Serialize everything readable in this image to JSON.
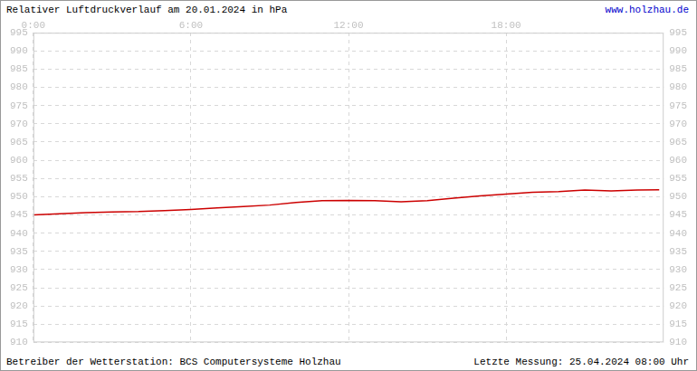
{
  "chart_data": {
    "type": "line",
    "title": "Relativer Luftdruckverlauf am 20.01.2024 in hPa",
    "annotations": [
      "www.holzhau.de",
      "Betreiber der Wetterstation: BCS Computersysteme Holzhau",
      "Letzte Messung: 25.04.2024 08:00 Uhr"
    ],
    "x": [
      0,
      1,
      2,
      3,
      4,
      5,
      6,
      7,
      8,
      9,
      10,
      11,
      12,
      13,
      14,
      15,
      16,
      17,
      18,
      19,
      20,
      21,
      22,
      23,
      23.83
    ],
    "values": [
      945.0,
      945.3,
      945.6,
      945.8,
      945.9,
      946.2,
      946.5,
      946.9,
      947.3,
      947.7,
      948.4,
      948.9,
      949.0,
      948.9,
      948.6,
      948.9,
      949.6,
      950.2,
      950.7,
      951.2,
      951.4,
      951.8,
      951.6,
      951.8,
      951.9
    ],
    "color": "#cc0000",
    "xlim": [
      0,
      24
    ],
    "xticks": [
      {
        "value": 0,
        "label": "0:00"
      },
      {
        "value": 6,
        "label": "6:00"
      },
      {
        "value": 12,
        "label": "12:00"
      },
      {
        "value": 18,
        "label": "18:00"
      }
    ],
    "ylim": [
      910,
      995
    ],
    "yticks": [
      910,
      915,
      920,
      925,
      930,
      935,
      940,
      945,
      950,
      955,
      960,
      965,
      970,
      975,
      980,
      985,
      990,
      995
    ],
    "grid": true
  }
}
